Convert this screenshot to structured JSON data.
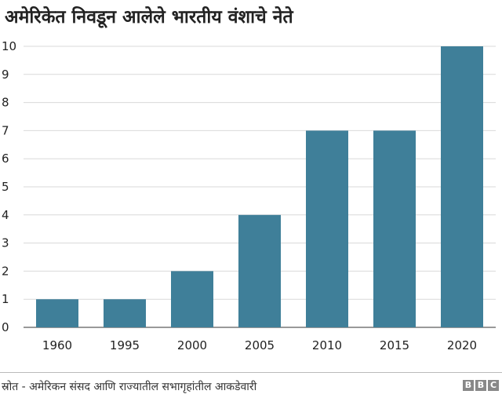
{
  "chart_data": {
    "type": "bar",
    "title": "अमेरिकेत निवडून आलेले भारतीय वंशाचे नेते",
    "categories": [
      "1960",
      "1995",
      "2000",
      "2005",
      "2010",
      "2015",
      "2020"
    ],
    "values": [
      1,
      1,
      2,
      4,
      7,
      7,
      10
    ],
    "yticks": [
      "0",
      "1",
      "2",
      "3",
      "4",
      "5",
      "6",
      "7",
      "8",
      "9",
      "10"
    ],
    "ylim": [
      0,
      10
    ],
    "xlabel": "",
    "ylabel": "",
    "bar_color": "#3f7f99",
    "grid_color": "#d9d9d9"
  },
  "footer": {
    "source": "स्रोत - अमेरिकन संसद आणि राज्यातील सभागृहांतील आकडेवारी",
    "brand_letters": [
      "B",
      "B",
      "C"
    ]
  }
}
